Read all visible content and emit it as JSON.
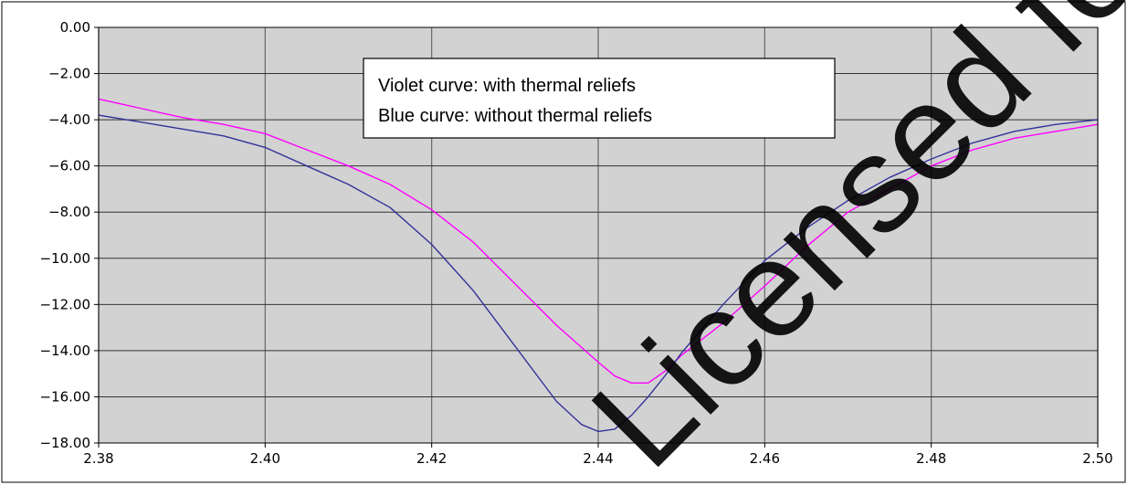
{
  "chart_data": {
    "type": "line",
    "xlim": [
      2.38,
      2.5
    ],
    "ylim": [
      -18,
      0
    ],
    "x_ticks": [
      "2.38",
      "2.40",
      "2.42",
      "2.44",
      "2.46",
      "2.48",
      "2.50"
    ],
    "y_ticks": [
      "0.00",
      "−2.00",
      "−4.00",
      "−6.00",
      "−8.00",
      "−10.00",
      "−12.00",
      "−14.00",
      "−16.00",
      "−18.00"
    ],
    "grid": true,
    "annotation": [
      "Violet curve: with thermal reliefs",
      "Blue curve: without thermal reliefs"
    ],
    "series": [
      {
        "color": "#ff00ff",
        "x": [
          2.38,
          2.385,
          2.39,
          2.395,
          2.4,
          2.405,
          2.41,
          2.415,
          2.42,
          2.425,
          2.43,
          2.435,
          2.44,
          2.442,
          2.444,
          2.446,
          2.448,
          2.45,
          2.455,
          2.46,
          2.465,
          2.47,
          2.475,
          2.48,
          2.485,
          2.49,
          2.495,
          2.5
        ],
        "y": [
          -3.1,
          -3.5,
          -3.9,
          -4.2,
          -4.6,
          -5.3,
          -6.0,
          -6.8,
          -7.9,
          -9.3,
          -11.1,
          -12.9,
          -14.5,
          -15.1,
          -15.4,
          -15.4,
          -14.9,
          -14.2,
          -12.8,
          -11.2,
          -9.5,
          -8.0,
          -7.0,
          -6.0,
          -5.3,
          -4.8,
          -4.5,
          -4.2
        ]
      },
      {
        "color": "#333399",
        "x": [
          2.38,
          2.385,
          2.39,
          2.395,
          2.4,
          2.405,
          2.41,
          2.415,
          2.42,
          2.425,
          2.43,
          2.435,
          2.438,
          2.44,
          2.442,
          2.444,
          2.446,
          2.448,
          2.45,
          2.455,
          2.46,
          2.465,
          2.47,
          2.475,
          2.48,
          2.485,
          2.49,
          2.495,
          2.5
        ],
        "y": [
          -3.8,
          -4.1,
          -4.4,
          -4.7,
          -5.2,
          -6.0,
          -6.8,
          -7.8,
          -9.4,
          -11.4,
          -13.8,
          -16.2,
          -17.2,
          -17.5,
          -17.4,
          -16.8,
          -16.0,
          -15.1,
          -14.1,
          -12.0,
          -10.1,
          -8.7,
          -7.5,
          -6.5,
          -5.7,
          -5.0,
          -4.5,
          -4.2,
          -4.0
        ]
      }
    ]
  },
  "watermark": "Licensed for New De"
}
